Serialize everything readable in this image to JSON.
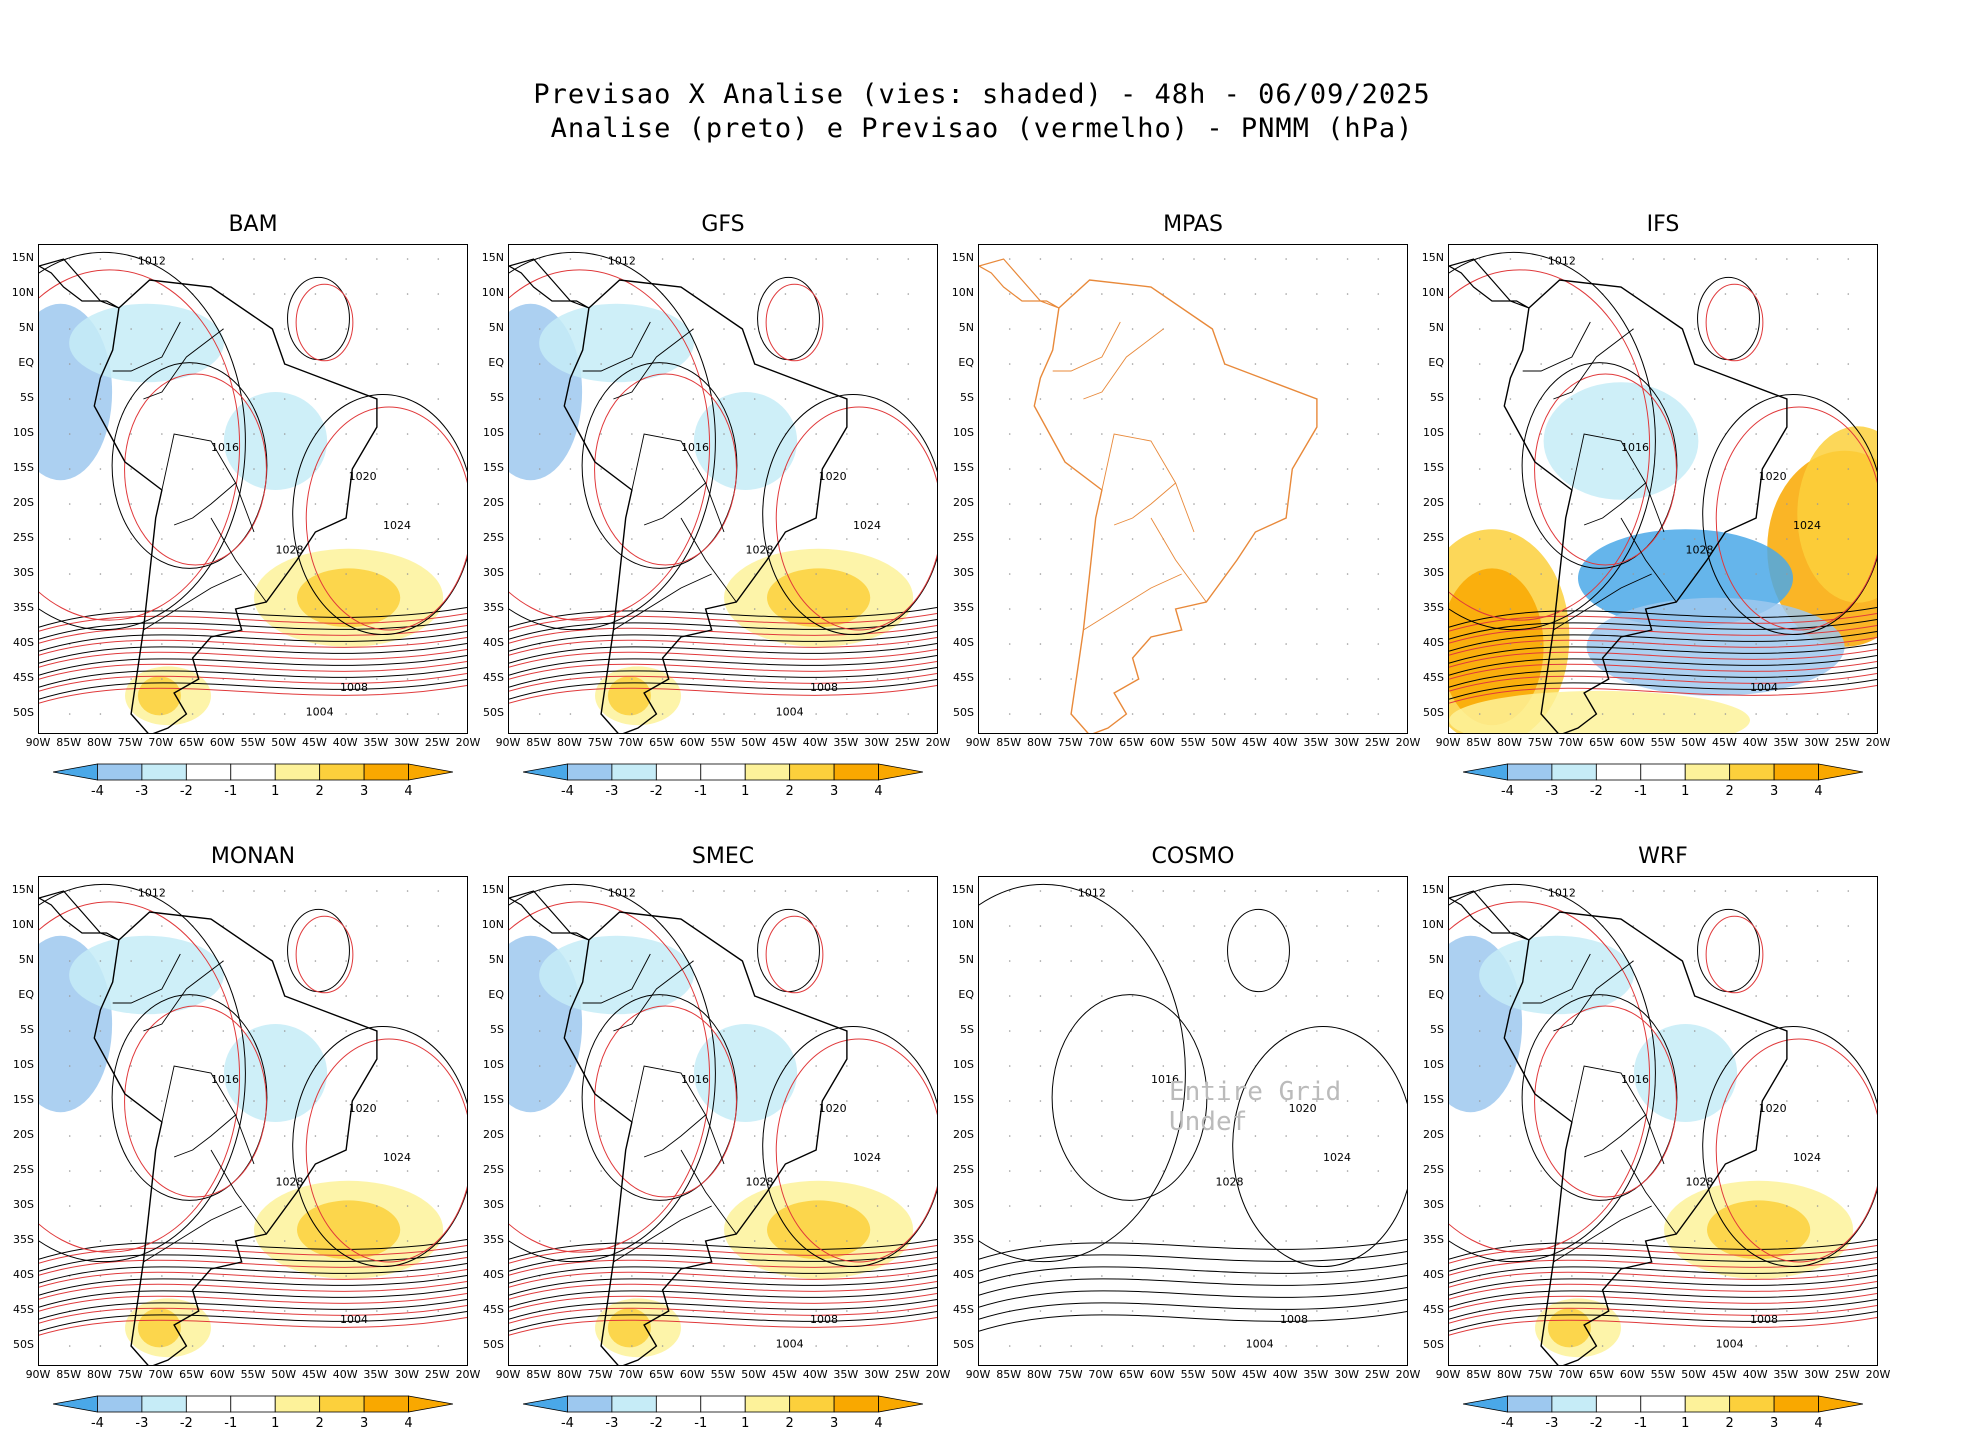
{
  "header": {
    "line1": "Previsao X Analise (vies: shaded) - 48h - 06/09/2025",
    "line2": "Analise (preto) e Previsao (vermelho) - PNMM (hPa)"
  },
  "colors": {
    "neg4": "#4aa8e8",
    "neg3": "#9dc8ef",
    "neg2": "#c6ecf7",
    "pos2": "#fdf29a",
    "pos3": "#fcd03c",
    "pos4": "#f9a800",
    "analysis_contour": "#000000",
    "forecast_contour": "#e0393b",
    "map_outline": "#e8893a"
  },
  "axes": {
    "lat_labels": [
      "15N",
      "10N",
      "5N",
      "EQ",
      "5S",
      "10S",
      "15S",
      "20S",
      "25S",
      "30S",
      "35S",
      "40S",
      "45S",
      "50S"
    ],
    "lon_labels": [
      "90W",
      "85W",
      "80W",
      "75W",
      "70W",
      "65W",
      "60W",
      "55W",
      "50W",
      "45W",
      "40W",
      "35W",
      "30W",
      "25W",
      "20W"
    ]
  },
  "colorbar": {
    "ticks": [
      "-4",
      "-3",
      "-2",
      "-1",
      "1",
      "2",
      "3",
      "4"
    ]
  },
  "panels": [
    {
      "name": "BAM",
      "bias": "mixed",
      "contours": [
        "1012",
        "1016",
        "1020",
        "1024",
        "1028",
        "1008",
        "1004"
      ]
    },
    {
      "name": "GFS",
      "bias": "mixed",
      "contours": [
        "1012",
        "1016",
        "1020",
        "1024",
        "1028",
        "1008",
        "1004"
      ]
    },
    {
      "name": "MPAS",
      "bias": "none",
      "contours": []
    },
    {
      "name": "IFS",
      "bias": "strong",
      "contours": [
        "1012",
        "1016",
        "1020",
        "1024",
        "1028",
        "1004"
      ]
    },
    {
      "name": "MONAN",
      "bias": "mixed",
      "contours": [
        "1012",
        "1016",
        "1020",
        "1024",
        "1028",
        "1004"
      ]
    },
    {
      "name": "SMEC",
      "bias": "mixed",
      "contours": [
        "1012",
        "1016",
        "1020",
        "1024",
        "1028",
        "1008",
        "1004"
      ]
    },
    {
      "name": "COSMO",
      "bias": "none",
      "contours": [
        "1012",
        "1016",
        "1020",
        "1024",
        "1028",
        "1008",
        "1004"
      ]
    },
    {
      "name": "WRF",
      "bias": "mixed",
      "contours": [
        "1012",
        "1016",
        "1020",
        "1024",
        "1028",
        "1008",
        "1004"
      ]
    }
  ],
  "cosmo_note": "Entire Grid Undef"
}
